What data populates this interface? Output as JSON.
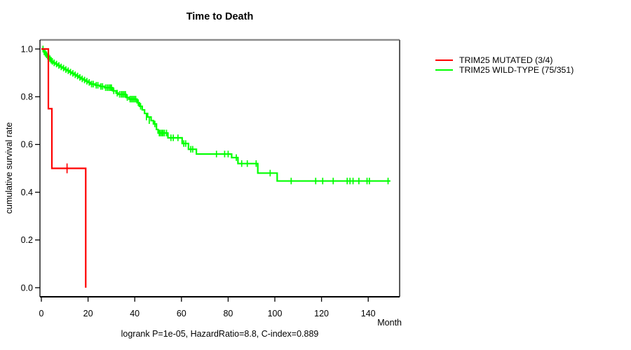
{
  "chart_data": {
    "type": "line",
    "subtype": "kaplan-meier-survival",
    "title": "Time to Death",
    "xlabel": "Month",
    "ylabel": "cumulative survival rate",
    "annotation": "logrank P=1e-05, HazardRatio=8.8, C-index=0.889",
    "xlim": [
      0,
      155
    ],
    "ylim": [
      0,
      1
    ],
    "grid": false,
    "legend_position": "right-margin",
    "x_ticks": [
      {
        "value": 0,
        "label": "0"
      },
      {
        "value": 20,
        "label": "20"
      },
      {
        "value": 40,
        "label": "40"
      },
      {
        "value": 60,
        "label": "60"
      },
      {
        "value": 80,
        "label": "80"
      },
      {
        "value": 100,
        "label": "100"
      },
      {
        "value": 120,
        "label": "120"
      },
      {
        "value": 140,
        "label": "140"
      }
    ],
    "y_ticks": [
      {
        "value": 1.0,
        "label": "1.0"
      },
      {
        "value": 0.8,
        "label": "0.8"
      },
      {
        "value": 0.6,
        "label": "0.6"
      },
      {
        "value": 0.4,
        "label": "0.4"
      },
      {
        "value": 0.2,
        "label": "0.2"
      },
      {
        "value": 0.0,
        "label": "0.0"
      }
    ],
    "series": [
      {
        "name": "TRIM25 WILD-TYPE (75/351)",
        "events": "75/351",
        "color": "#00ff00",
        "steps": [
          [
            0,
            1.0
          ],
          [
            1,
            0.988
          ],
          [
            1.5,
            0.982
          ],
          [
            2,
            0.976
          ],
          [
            2.5,
            0.97
          ],
          [
            3,
            0.965
          ],
          [
            3.5,
            0.959
          ],
          [
            4,
            0.953
          ],
          [
            4.5,
            0.948
          ],
          [
            5,
            0.942
          ],
          [
            6,
            0.937
          ],
          [
            7,
            0.931
          ],
          [
            8,
            0.925
          ],
          [
            9,
            0.92
          ],
          [
            10,
            0.914
          ],
          [
            11,
            0.909
          ],
          [
            12,
            0.903
          ],
          [
            13,
            0.898
          ],
          [
            14,
            0.892
          ],
          [
            15,
            0.887
          ],
          [
            16,
            0.881
          ],
          [
            17,
            0.875
          ],
          [
            18,
            0.87
          ],
          [
            19,
            0.865
          ],
          [
            20,
            0.86
          ],
          [
            21,
            0.853
          ],
          [
            23,
            0.848
          ],
          [
            25,
            0.843
          ],
          [
            27,
            0.838
          ],
          [
            30.5,
            0.825
          ],
          [
            32,
            0.815
          ],
          [
            33,
            0.81
          ],
          [
            36.3,
            0.797
          ],
          [
            37.5,
            0.79
          ],
          [
            41,
            0.775
          ],
          [
            42,
            0.76
          ],
          [
            43.2,
            0.745
          ],
          [
            44.2,
            0.73
          ],
          [
            45.5,
            0.715
          ],
          [
            47,
            0.7
          ],
          [
            48,
            0.686
          ],
          [
            49.3,
            0.663
          ],
          [
            50,
            0.648
          ],
          [
            54.2,
            0.628
          ],
          [
            60.3,
            0.604
          ],
          [
            63,
            0.58
          ],
          [
            66.4,
            0.56
          ],
          [
            81.5,
            0.545
          ],
          [
            84.2,
            0.52
          ],
          [
            92.7,
            0.48
          ],
          [
            101,
            0.447
          ],
          [
            149.5,
            0.447
          ]
        ],
        "censors": [
          [
            0.7,
            1.0
          ],
          [
            1.2,
            0.988
          ],
          [
            1.7,
            0.982
          ],
          [
            2.2,
            0.976
          ],
          [
            2.7,
            0.97
          ],
          [
            3.2,
            0.965
          ],
          [
            3.7,
            0.959
          ],
          [
            4.2,
            0.953
          ],
          [
            4.7,
            0.948
          ],
          [
            5.5,
            0.942
          ],
          [
            6.5,
            0.937
          ],
          [
            7.5,
            0.931
          ],
          [
            8.5,
            0.925
          ],
          [
            9.5,
            0.92
          ],
          [
            10.5,
            0.914
          ],
          [
            11.5,
            0.909
          ],
          [
            12.5,
            0.903
          ],
          [
            13.5,
            0.898
          ],
          [
            14.5,
            0.892
          ],
          [
            15.5,
            0.887
          ],
          [
            16.5,
            0.881
          ],
          [
            17.5,
            0.875
          ],
          [
            18.5,
            0.87
          ],
          [
            19.5,
            0.865
          ],
          [
            20.5,
            0.86
          ],
          [
            21.5,
            0.853
          ],
          [
            22.2,
            0.853
          ],
          [
            23.5,
            0.848
          ],
          [
            24.2,
            0.848
          ],
          [
            25.5,
            0.843
          ],
          [
            26.2,
            0.843
          ],
          [
            27.5,
            0.838
          ],
          [
            28.2,
            0.838
          ],
          [
            28.9,
            0.838
          ],
          [
            29.5,
            0.838
          ],
          [
            30,
            0.838
          ],
          [
            31,
            0.825
          ],
          [
            32.5,
            0.815
          ],
          [
            33.5,
            0.81
          ],
          [
            34.2,
            0.81
          ],
          [
            34.8,
            0.81
          ],
          [
            35.4,
            0.81
          ],
          [
            36,
            0.81
          ],
          [
            36.8,
            0.797
          ],
          [
            38,
            0.79
          ],
          [
            38.6,
            0.79
          ],
          [
            39.2,
            0.79
          ],
          [
            39.8,
            0.79
          ],
          [
            40.4,
            0.79
          ],
          [
            41.5,
            0.775
          ],
          [
            42.5,
            0.76
          ],
          [
            45,
            0.715
          ],
          [
            46.2,
            0.7
          ],
          [
            48.6,
            0.686
          ],
          [
            50.5,
            0.648
          ],
          [
            51,
            0.648
          ],
          [
            51.6,
            0.648
          ],
          [
            52.1,
            0.648
          ],
          [
            52.7,
            0.648
          ],
          [
            53.6,
            0.648
          ],
          [
            55.5,
            0.628
          ],
          [
            56.5,
            0.628
          ],
          [
            58.5,
            0.628
          ],
          [
            61,
            0.604
          ],
          [
            61.8,
            0.604
          ],
          [
            64,
            0.58
          ],
          [
            64.8,
            0.58
          ],
          [
            75,
            0.56
          ],
          [
            78.5,
            0.56
          ],
          [
            80,
            0.56
          ],
          [
            83.5,
            0.545
          ],
          [
            85.8,
            0.52
          ],
          [
            88.2,
            0.52
          ],
          [
            92,
            0.52
          ],
          [
            98,
            0.48
          ],
          [
            107,
            0.447
          ],
          [
            117.5,
            0.447
          ],
          [
            120.5,
            0.447
          ],
          [
            125,
            0.447
          ],
          [
            131,
            0.447
          ],
          [
            132.2,
            0.447
          ],
          [
            133.5,
            0.447
          ],
          [
            136,
            0.447
          ],
          [
            139.5,
            0.447
          ],
          [
            140.5,
            0.447
          ],
          [
            148.5,
            0.447
          ]
        ]
      },
      {
        "name": "TRIM25 MUTATED (3/4)",
        "events": "3/4",
        "color": "#ff0000",
        "steps": [
          [
            0,
            1.0
          ],
          [
            3,
            0.75
          ],
          [
            4.5,
            0.5
          ],
          [
            19,
            0.0
          ]
        ],
        "censors": [
          [
            11,
            0.5
          ]
        ]
      }
    ],
    "colors": {
      "mutated": "#ff0000",
      "wild_type": "#00ff00",
      "axis": "#000000",
      "box_top": "#8c8c8c",
      "box_right": "#5a5a5a"
    },
    "legend_order": [
      1,
      0
    ]
  }
}
